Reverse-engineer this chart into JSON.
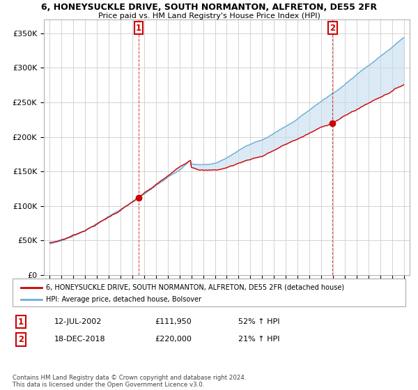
{
  "title1": "6, HONEYSUCKLE DRIVE, SOUTH NORMANTON, ALFRETON, DE55 2FR",
  "title2": "Price paid vs. HM Land Registry's House Price Index (HPI)",
  "ylabel_ticks": [
    "£0",
    "£50K",
    "£100K",
    "£150K",
    "£200K",
    "£250K",
    "£300K",
    "£350K"
  ],
  "ylabel_values": [
    0,
    50000,
    100000,
    150000,
    200000,
    250000,
    300000,
    350000
  ],
  "ylim": [
    0,
    370000
  ],
  "xlim_start": 1994.5,
  "xlim_end": 2025.5,
  "sale1_x": 2002.53,
  "sale1_y": 111950,
  "sale2_x": 2018.96,
  "sale2_y": 220000,
  "legend_line1": "6, HONEYSUCKLE DRIVE, SOUTH NORMANTON, ALFRETON, DE55 2FR (detached house)",
  "legend_line2": "HPI: Average price, detached house, Bolsover",
  "ann1_date": "12-JUL-2002",
  "ann1_price": "£111,950",
  "ann1_hpi": "52% ↑ HPI",
  "ann2_date": "18-DEC-2018",
  "ann2_price": "£220,000",
  "ann2_hpi": "21% ↑ HPI",
  "footer": "Contains HM Land Registry data © Crown copyright and database right 2024.\nThis data is licensed under the Open Government Licence v3.0.",
  "hpi_color": "#6baed6",
  "hpi_fill_color": "#c6dcef",
  "price_color": "#cc0000",
  "grid_color": "#cccccc",
  "background_color": "#ffffff"
}
